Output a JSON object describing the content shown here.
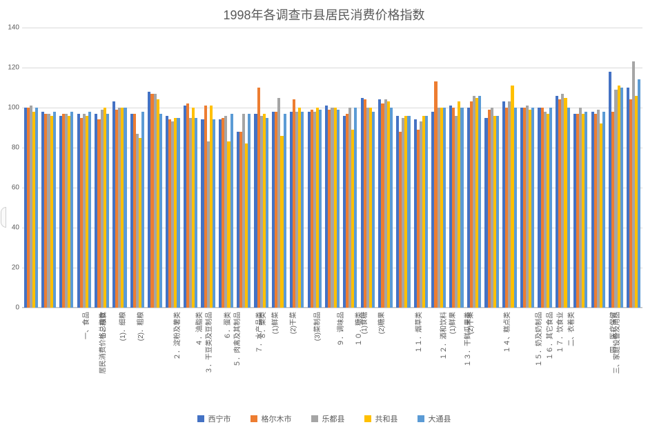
{
  "chart": {
    "type": "grouped-bar",
    "title": "1998年各调查市县居民消费价格指数",
    "title_fontsize": 18,
    "background_color": "#ffffff",
    "grid_color": "#d9d9d9",
    "axis_line_color": "#bfbfbf",
    "text_color": "#595959",
    "ylim": [
      0,
      140
    ],
    "ytick_step": 20,
    "categories": [
      "居民消费价格总指数",
      "一、食品",
      "１．粮食",
      "(1)．细粮",
      "(2)．粗粮",
      "２．淀粉及薯类",
      "３．干豆类及豆制品",
      "４．油脂类",
      "５．肉禽及其制品",
      "６．蛋类",
      "７．水产品类",
      "８．菜类",
      "(1)鲜菜",
      "(2)干菜",
      "(3)菜制品",
      "９．调味品",
      "１０．糖类",
      "(1)食糖",
      "(2)糖果",
      "１１．烟草类",
      "１２．酒和饮料",
      "１３．干鲜瓜果类",
      "(1)鲜果",
      "(2)干果",
      "１４、糕点类",
      "１５．奶及奶制品",
      "１６．其它食品",
      "１７．饮食业",
      "二、衣着类",
      "三、家庭设备及用品",
      "四、医疗保健",
      "五、交通和通讯工具",
      "六、娱乐教育文化用品",
      "七、居住",
      "八、服务项目"
    ],
    "series": [
      {
        "name": "西宁市",
        "color": "#4472c4",
        "values": [
          100,
          98,
          96,
          97,
          97,
          103,
          97,
          108,
          96,
          101,
          94,
          94,
          88,
          97,
          98,
          98,
          98,
          101,
          96,
          105,
          104,
          96,
          94,
          98,
          101,
          100,
          95,
          103,
          100,
          100,
          106,
          97,
          98,
          118,
          110
        ]
      },
      {
        "name": "格尔木市",
        "color": "#ed7d31",
        "values": [
          100,
          97,
          97,
          95,
          94,
          99,
          97,
          107,
          94,
          102,
          101,
          95,
          88,
          110,
          98,
          104,
          99,
          99,
          97,
          104,
          102,
          88,
          89,
          113,
          100,
          103,
          99,
          100,
          100,
          100,
          104,
          97,
          97,
          98,
          104
        ]
      },
      {
        "name": "乐都县",
        "color": "#a5a5a5",
        "values": [
          101,
          97,
          97,
          97,
          99,
          100,
          87,
          107,
          93,
          95,
          83,
          96,
          97,
          96,
          105,
          98,
          98,
          100,
          100,
          100,
          104,
          95,
          93,
          100,
          96,
          106,
          100,
          103,
          101,
          98,
          107,
          100,
          99,
          109,
          123
        ]
      },
      {
        "name": "共和县",
        "color": "#ffc000",
        "values": [
          98,
          96,
          96,
          96,
          100,
          100,
          85,
          104,
          95,
          100,
          101,
          83,
          82,
          97,
          86,
          100,
          100,
          100,
          89,
          100,
          103,
          96,
          96,
          100,
          103,
          105,
          96,
          111,
          99,
          97,
          105,
          97,
          92,
          111,
          106
        ]
      },
      {
        "name": "大通县",
        "color": "#5b9bd5",
        "values": [
          100,
          98,
          98,
          98,
          97,
          100,
          98,
          97,
          95,
          95,
          94,
          97,
          97,
          95,
          97,
          98,
          99,
          99,
          100,
          98,
          100,
          96,
          96,
          100,
          100,
          106,
          96,
          100,
          100,
          100,
          100,
          98,
          98,
          110,
          114
        ]
      }
    ],
    "legend_position": "bottom"
  }
}
